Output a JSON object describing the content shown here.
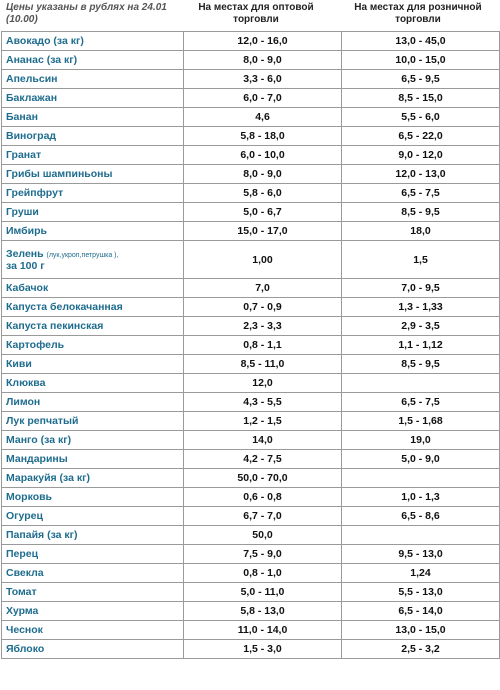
{
  "header": {
    "note": "Цены указаны в рублях на 24.01 (10.00)",
    "wholesale": "На местах для оптовой торговли",
    "retail": "На местах для розничной торговли"
  },
  "table": {
    "rows": [
      {
        "name": "Авокадо (за кг)",
        "wholesale": "12,0 - 16,0",
        "retail": "13,0 - 45,0"
      },
      {
        "name": "Ананас (за кг)",
        "wholesale": "8,0 - 9,0",
        "retail": "10,0 - 15,0"
      },
      {
        "name": "Апельсин",
        "wholesale": "3,3 - 6,0",
        "retail": "6,5 - 9,5"
      },
      {
        "name": "Баклажан",
        "wholesale": "6,0 - 7,0",
        "retail": "8,5 - 15,0"
      },
      {
        "name": "Банан",
        "wholesale": "4,6",
        "retail": "5,5 - 6,0"
      },
      {
        "name": "Виноград",
        "wholesale": "5,8 - 18,0",
        "retail": "6,5 - 22,0"
      },
      {
        "name": "Гранат",
        "wholesale": "6,0 - 10,0",
        "retail": "9,0 - 12,0"
      },
      {
        "name": "Грибы шампиньоны",
        "wholesale": "8,0 - 9,0",
        "retail": "12,0 - 13,0"
      },
      {
        "name": "Грейпфрут",
        "wholesale": "5,8 - 6,0",
        "retail": "6,5 - 7,5"
      },
      {
        "name": "Груши",
        "wholesale": "5,0 - 6,7",
        "retail": "8,5 - 9,5"
      },
      {
        "name": "Имбирь",
        "wholesale": "15,0 - 17,0",
        "retail": "18,0"
      },
      {
        "name": "Зелень",
        "note": "(лук,укроп,петрушка ),",
        "unit": "за 100 г",
        "wholesale": "1,00",
        "retail": "1,5"
      },
      {
        "name": "Кабачок",
        "wholesale": "7,0",
        "retail": "7,0 - 9,5"
      },
      {
        "name": "Капуста белокачанная",
        "wholesale": "0,7 - 0,9",
        "retail": "1,3 - 1,33"
      },
      {
        "name": "Капуста пекинская",
        "wholesale": "2,3 - 3,3",
        "retail": "2,9 - 3,5"
      },
      {
        "name": "Картофель",
        "wholesale": "0,8 - 1,1",
        "retail": "1,1 - 1,12"
      },
      {
        "name": "Киви",
        "wholesale": "8,5 - 11,0",
        "retail": "8,5 - 9,5"
      },
      {
        "name": "Клюква",
        "wholesale": "12,0"
      },
      {
        "name": "Лимон",
        "wholesale": "4,3 - 5,5",
        "retail": "6,5 - 7,5"
      },
      {
        "name": "Лук репчатый",
        "wholesale": "1,2 - 1,5",
        "retail": "1,5 - 1,68"
      },
      {
        "name": "Манго (за кг)",
        "wholesale": "14,0",
        "retail": "19,0"
      },
      {
        "name": "Мандарины",
        "wholesale": "4,2 - 7,5",
        "retail": "5,0 - 9,0"
      },
      {
        "name": "Маракуйя (за кг)",
        "wholesale": "50,0 - 70,0"
      },
      {
        "name": "Морковь",
        "wholesale": "0,6 - 0,8",
        "retail": "1,0 - 1,3"
      },
      {
        "name": "Огурец",
        "wholesale": "6,7 - 7,0",
        "retail": "6,5 - 8,6"
      },
      {
        "name": "Папайя (за кг)",
        "wholesale": "50,0"
      },
      {
        "name": "Перец",
        "wholesale": "7,5 - 9,0",
        "retail": "9,5 - 13,0"
      },
      {
        "name": "Свекла",
        "wholesale": "0,8 - 1,0",
        "retail": "1,24"
      },
      {
        "name": "Томат",
        "wholesale": "5,0 - 11,0",
        "retail": "5,5 - 13,0"
      },
      {
        "name": "Хурма",
        "wholesale": "5,8 - 13,0",
        "retail": "6,5 - 14,0"
      },
      {
        "name": "Чеснок",
        "wholesale": "11,0 - 14,0",
        "retail": "13,0 - 15,0"
      },
      {
        "name": "Яблоко",
        "wholesale": "1,5 - 3,0",
        "retail": "2,5 - 3,2"
      }
    ]
  }
}
